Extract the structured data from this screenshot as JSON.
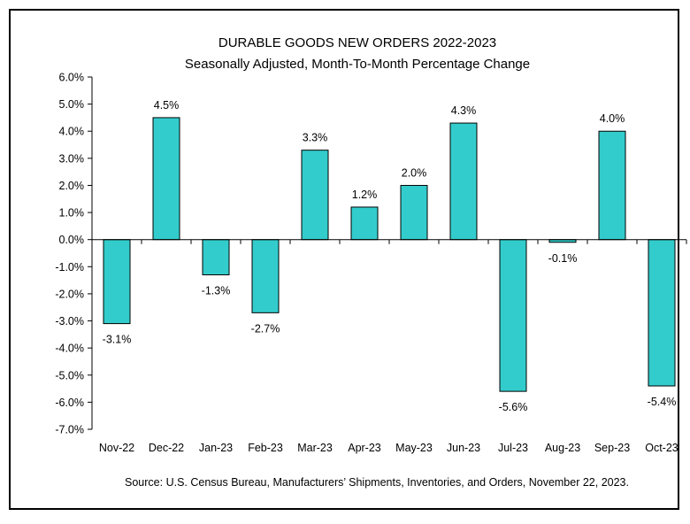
{
  "chart_data": {
    "type": "bar",
    "title": "DURABLE GOODS NEW ORDERS 2022-2023",
    "subtitle": "Seasonally Adjusted,  Month-To-Month Percentage Change",
    "categories": [
      "Nov-22",
      "Dec-22",
      "Jan-23",
      "Feb-23",
      "Mar-23",
      "Apr-23",
      "May-23",
      "Jun-23",
      "Jul-23",
      "Aug-23",
      "Sep-23",
      "Oct-23"
    ],
    "values": [
      -3.1,
      4.5,
      -1.3,
      -2.7,
      3.3,
      1.2,
      2.0,
      4.3,
      -5.6,
      -0.1,
      4.0,
      -5.4
    ],
    "data_labels": [
      "-3.1%",
      "4.5%",
      "-1.3%",
      "-2.7%",
      "3.3%",
      "1.2%",
      "2.0%",
      "4.3%",
      "-5.6%",
      "-0.1%",
      "4.0%",
      "-5.4%"
    ],
    "y_ticks": [
      6,
      5,
      4,
      3,
      2,
      1,
      0,
      -1,
      -2,
      -3,
      -4,
      -5,
      -6,
      -7
    ],
    "y_tick_labels": [
      "6.0%",
      "5.0%",
      "4.0%",
      "3.0%",
      "2.0%",
      "1.0%",
      "0.0%",
      "-1.0%",
      "-2.0%",
      "-3.0%",
      "-4.0%",
      "-5.0%",
      "-6.0%",
      "-7.0%"
    ],
    "ylim": [
      -7,
      6
    ],
    "xlabel": "",
    "ylabel": "",
    "grid": false,
    "legend": "none",
    "bar_color": "#33CCCC",
    "bar_edge_color": "#000000",
    "source": "Source: U.S. Census Bureau, Manufacturers’ Shipments, Inventories, and Orders, November 22, 2023."
  }
}
